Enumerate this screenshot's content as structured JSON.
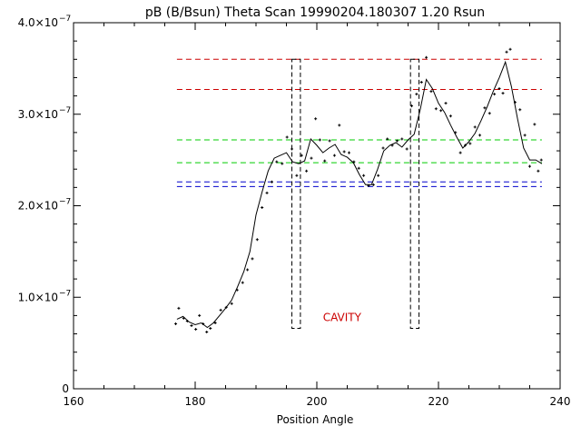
{
  "chart_data": {
    "type": "line",
    "title": "pB (B/Bsun) Theta Scan 19990204.180307 1.20 Rsun",
    "xlabel": "Position Angle",
    "ylabel": "",
    "xlim": [
      160,
      240
    ],
    "ylim": [
      0,
      4e-07
    ],
    "x_ticks": [
      {
        "value": 160,
        "label": "160"
      },
      {
        "value": 180,
        "label": "180"
      },
      {
        "value": 200,
        "label": "200"
      },
      {
        "value": 220,
        "label": "220"
      },
      {
        "value": 240,
        "label": "240"
      }
    ],
    "y_ticks": [
      {
        "value": 0,
        "label": "0",
        "exp": ""
      },
      {
        "value": 1e-07,
        "label": "1.0×10",
        "exp": "−7"
      },
      {
        "value": 2e-07,
        "label": "2.0×10",
        "exp": "−7"
      },
      {
        "value": 3e-07,
        "label": "3.0×10",
        "exp": "−7"
      },
      {
        "value": 4e-07,
        "label": "4.0×10",
        "exp": "−7"
      }
    ],
    "grid": false,
    "annotation": {
      "text": "CAVITY",
      "x": 201,
      "y": 7.4e-08,
      "color": "#cc0000"
    },
    "reference_lines": [
      {
        "y": 3.6e-07,
        "x": [
          177,
          237
        ],
        "color": "#cc0000",
        "style": "dashed"
      },
      {
        "y": 3.27e-07,
        "x": [
          177,
          237
        ],
        "color": "#cc0000",
        "style": "dashed"
      },
      {
        "y": 2.72e-07,
        "x": [
          177,
          237
        ],
        "color": "#00cc00",
        "style": "dashed"
      },
      {
        "y": 2.47e-07,
        "x": [
          177,
          237
        ],
        "color": "#00cc00",
        "style": "dashed"
      },
      {
        "y": 2.26e-07,
        "x": [
          177,
          237
        ],
        "color": "#0000cc",
        "style": "dashed"
      },
      {
        "y": 2.21e-07,
        "x": [
          177,
          237
        ],
        "color": "#0000cc",
        "style": "dashed"
      }
    ],
    "cavity_boxes": [
      {
        "x": [
          195.9,
          197.3
        ],
        "y": [
          6.6e-08,
          3.6e-07
        ],
        "color": "#000000",
        "style": "dashed"
      },
      {
        "x": [
          215.4,
          216.8
        ],
        "y": [
          6.6e-08,
          3.6e-07
        ],
        "color": "#000000",
        "style": "dashed"
      }
    ],
    "smoothed_series": {
      "color": "#000000",
      "x": [
        177,
        178,
        179,
        180,
        181,
        182,
        183,
        184,
        185,
        186,
        187,
        188,
        189,
        190,
        191,
        192,
        193,
        194,
        195,
        196,
        197,
        198,
        199,
        200,
        201,
        202,
        203,
        204,
        205,
        206,
        207,
        208,
        209,
        210,
        211,
        212,
        213,
        214,
        215,
        216,
        217,
        218,
        219,
        220,
        221,
        222,
        223,
        224,
        225,
        226,
        227,
        228,
        229,
        230,
        231,
        232,
        233,
        234,
        235,
        236,
        237
      ],
      "y": [
        7.6e-08,
        7.9e-08,
        7.3e-08,
        7e-08,
        7.2e-08,
        6.7e-08,
        7.2e-08,
        8e-08,
        8.8e-08,
        9.7e-08,
        1.12e-07,
        1.28e-07,
        1.5e-07,
        1.9e-07,
        2.15e-07,
        2.38e-07,
        2.52e-07,
        2.55e-07,
        2.58e-07,
        2.48e-07,
        2.46e-07,
        2.49e-07,
        2.73e-07,
        2.66e-07,
        2.58e-07,
        2.63e-07,
        2.67e-07,
        2.56e-07,
        2.53e-07,
        2.47e-07,
        2.34e-07,
        2.23e-07,
        2.23e-07,
        2.4e-07,
        2.6e-07,
        2.66e-07,
        2.69e-07,
        2.64e-07,
        2.72e-07,
        2.78e-07,
        3.05e-07,
        3.38e-07,
        3.28e-07,
        3.12e-07,
        3.02e-07,
        2.88e-07,
        2.75e-07,
        2.63e-07,
        2.7e-07,
        2.79e-07,
        2.93e-07,
        3.08e-07,
        3.25e-07,
        3.4e-07,
        3.57e-07,
        3.3e-07,
        2.95e-07,
        2.63e-07,
        2.5e-07,
        2.5e-07,
        2.46e-07
      ]
    },
    "raw_points": {
      "color": "#000000",
      "x": [
        176.8,
        177.3,
        178.1,
        178.7,
        179.4,
        180.1,
        180.7,
        181.3,
        181.9,
        182.5,
        183.3,
        184.2,
        185.1,
        186.0,
        186.9,
        187.8,
        188.6,
        189.4,
        190.2,
        191.0,
        191.8,
        192.6,
        193.4,
        194.3,
        195.1,
        195.9,
        196.7,
        197.5,
        198.3,
        199.1,
        199.8,
        200.5,
        201.3,
        202.1,
        202.9,
        203.7,
        204.5,
        205.3,
        206.1,
        206.9,
        207.7,
        208.5,
        209.3,
        210.1,
        210.9,
        211.6,
        212.4,
        213.2,
        214.0,
        214.8,
        215.6,
        216.4,
        217.2,
        218.0,
        218.8,
        219.6,
        220.4,
        221.2,
        222.0,
        222.8,
        223.6,
        224.4,
        225.2,
        226.0,
        226.8,
        227.6,
        228.4,
        229.2,
        230.0,
        230.6,
        231.2,
        231.8,
        232.6,
        233.4,
        234.2,
        235.0,
        235.8,
        236.4,
        236.9
      ],
      "y": [
        7.1e-08,
        8.8e-08,
        7.7e-08,
        7.4e-08,
        6.9e-08,
        6.5e-08,
        8e-08,
        7.1e-08,
        6.2e-08,
        6.6e-08,
        7.2e-08,
        8.6e-08,
        8.9e-08,
        9.3e-08,
        1.08e-07,
        1.16e-07,
        1.3e-07,
        1.42e-07,
        1.63e-07,
        1.98e-07,
        2.14e-07,
        2.26e-07,
        2.48e-07,
        2.46e-07,
        2.75e-07,
        2.62e-07,
        2.33e-07,
        2.55e-07,
        2.38e-07,
        2.52e-07,
        2.95e-07,
        2.72e-07,
        2.49e-07,
        2.71e-07,
        2.55e-07,
        2.88e-07,
        2.59e-07,
        2.58e-07,
        2.48e-07,
        2.41e-07,
        2.33e-07,
        2.22e-07,
        2.23e-07,
        2.33e-07,
        2.63e-07,
        2.73e-07,
        2.66e-07,
        2.71e-07,
        2.73e-07,
        2.62e-07,
        3.09e-07,
        3.22e-07,
        3.35e-07,
        3.62e-07,
        3.25e-07,
        3.06e-07,
        3.04e-07,
        3.12e-07,
        2.98e-07,
        2.8e-07,
        2.58e-07,
        2.66e-07,
        2.68e-07,
        2.86e-07,
        2.77e-07,
        3.07e-07,
        3.01e-07,
        3.22e-07,
        3.28e-07,
        3.23e-07,
        3.68e-07,
        3.71e-07,
        3.13e-07,
        3.05e-07,
        2.77e-07,
        2.43e-07,
        2.89e-07,
        2.38e-07,
        2.5e-07
      ]
    }
  }
}
